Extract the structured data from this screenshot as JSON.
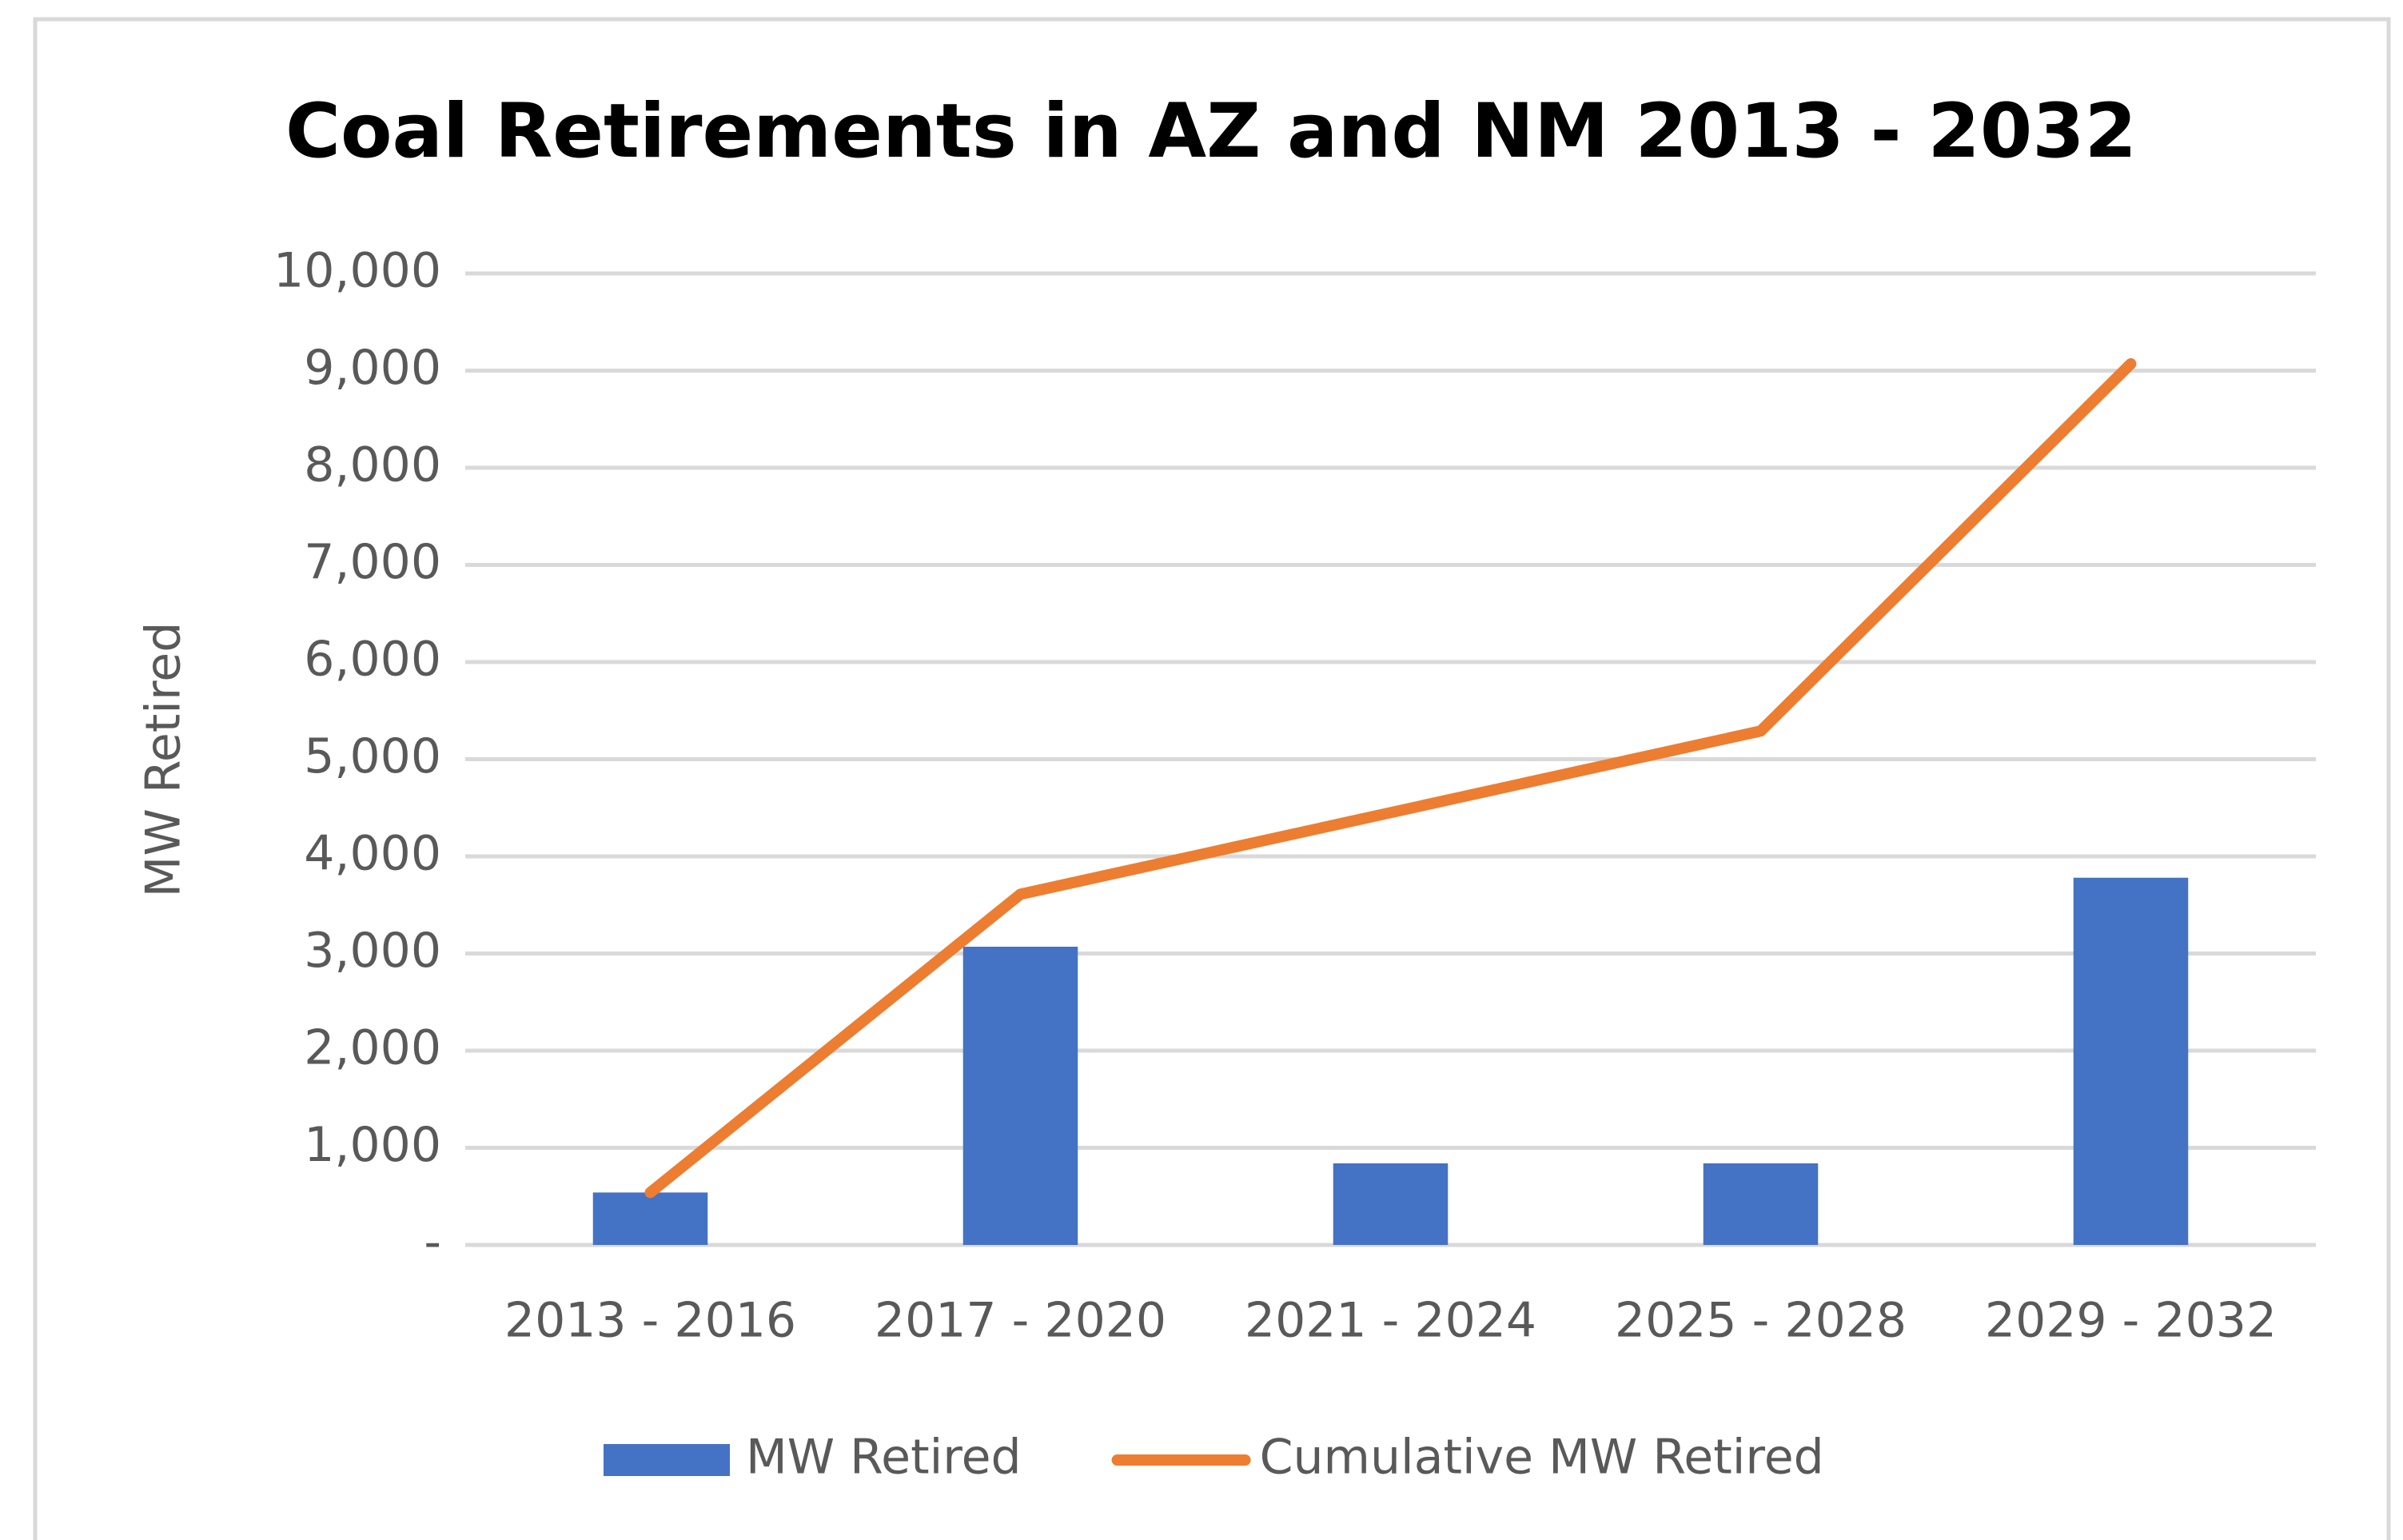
{
  "chart_data": {
    "type": "bar_line",
    "title": "Coal Retirements in AZ and NM 2013 - 2032",
    "y_label": "MW Retired",
    "categories": [
      "2013 - 2016",
      "2017 - 2020",
      "2021 - 2024",
      "2025 - 2028",
      "2029 - 2032"
    ],
    "series": [
      {
        "name": "MW Retired",
        "type": "bar",
        "color": "#4472c4",
        "values": [
          540,
          3070,
          840,
          840,
          3780
        ]
      },
      {
        "name": "Cumulative MW Retired",
        "type": "line",
        "color": "#ed7d31",
        "values": [
          540,
          3610,
          4450,
          5290,
          9070
        ]
      }
    ],
    "ylim": [
      0,
      10000
    ],
    "yticks": [
      {
        "value": 0,
        "label": "-"
      },
      {
        "value": 1000,
        "label": "1,000"
      },
      {
        "value": 2000,
        "label": "2,000"
      },
      {
        "value": 3000,
        "label": "3,000"
      },
      {
        "value": 4000,
        "label": "4,000"
      },
      {
        "value": 5000,
        "label": "5,000"
      },
      {
        "value": 6000,
        "label": "6,000"
      },
      {
        "value": 7000,
        "label": "7,000"
      },
      {
        "value": 8000,
        "label": "8,000"
      },
      {
        "value": 9000,
        "label": "9,000"
      },
      {
        "value": 10000,
        "label": "10,000"
      }
    ],
    "grid": true,
    "legend": "bottom"
  }
}
